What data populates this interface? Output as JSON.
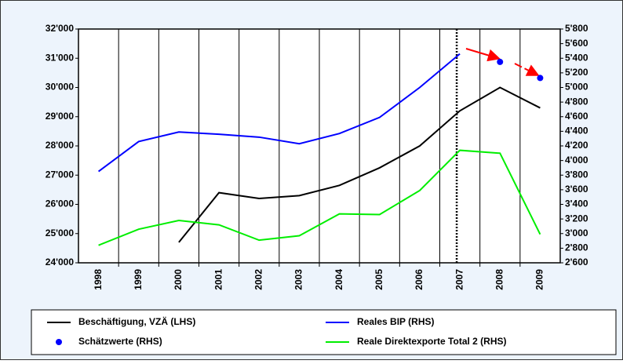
{
  "chart_data": {
    "type": "line",
    "categories": [
      "1998",
      "1999",
      "2000",
      "2001",
      "2002",
      "2003",
      "2004",
      "2005",
      "2006",
      "2007",
      "2008",
      "2009"
    ],
    "ylim": [
      24000,
      32000
    ],
    "yticks": [
      {
        "value": 24000,
        "label": "24'000"
      },
      {
        "value": 25000,
        "label": "25'000"
      },
      {
        "value": 26000,
        "label": "26'000"
      },
      {
        "value": 27000,
        "label": "27'000"
      },
      {
        "value": 28000,
        "label": "28'000"
      },
      {
        "value": 29000,
        "label": "29'000"
      },
      {
        "value": 30000,
        "label": "30'000"
      },
      {
        "value": 31000,
        "label": "31'000"
      },
      {
        "value": 32000,
        "label": "32'000"
      }
    ],
    "y2lim": [
      2600,
      5800
    ],
    "y2ticks": [
      {
        "value": 2600,
        "label": "2'600"
      },
      {
        "value": 2800,
        "label": "2'800"
      },
      {
        "value": 3000,
        "label": "3'000"
      },
      {
        "value": 3200,
        "label": "3'200"
      },
      {
        "value": 3400,
        "label": "3'400"
      },
      {
        "value": 3600,
        "label": "3'600"
      },
      {
        "value": 3800,
        "label": "3'800"
      },
      {
        "value": 4000,
        "label": "4'000"
      },
      {
        "value": 4200,
        "label": "4'200"
      },
      {
        "value": 4400,
        "label": "4'400"
      },
      {
        "value": 4600,
        "label": "4'600"
      },
      {
        "value": 4800,
        "label": "4'800"
      },
      {
        "value": 5000,
        "label": "5'000"
      },
      {
        "value": 5200,
        "label": "5'200"
      },
      {
        "value": 5400,
        "label": "5'400"
      },
      {
        "value": 5600,
        "label": "5'600"
      },
      {
        "value": 5800,
        "label": "5'800"
      }
    ],
    "series": [
      {
        "name": "Beschäftigung, VZÄ (LHS)",
        "color": "#000000",
        "mode": "lines",
        "values": [
          null,
          null,
          24700,
          26400,
          26200,
          26300,
          26650,
          27250,
          28000,
          29200,
          30000,
          29300
        ]
      },
      {
        "name": "Reales BIP (RHS)",
        "color": "#0000ff",
        "mode": "lines",
        "axis": "y2",
        "values": [
          3850,
          4260,
          4390,
          4360,
          4320,
          4230,
          4370,
          4590,
          5000,
          5460,
          null,
          null
        ]
      },
      {
        "name": "Schätzwerte (RHS)",
        "color": "#0000ff",
        "mode": "markers",
        "axis": "y2",
        "values": [
          null,
          null,
          null,
          null,
          null,
          null,
          null,
          null,
          null,
          null,
          5350,
          5130
        ]
      },
      {
        "name": "Reale Direktexporte Total 2 (RHS)",
        "color": "#00ee00",
        "mode": "lines",
        "axis": "y2",
        "values": [
          2840,
          3060,
          3180,
          3120,
          2910,
          2970,
          3270,
          3260,
          3590,
          4140,
          4100,
          2990
        ]
      }
    ]
  }
}
